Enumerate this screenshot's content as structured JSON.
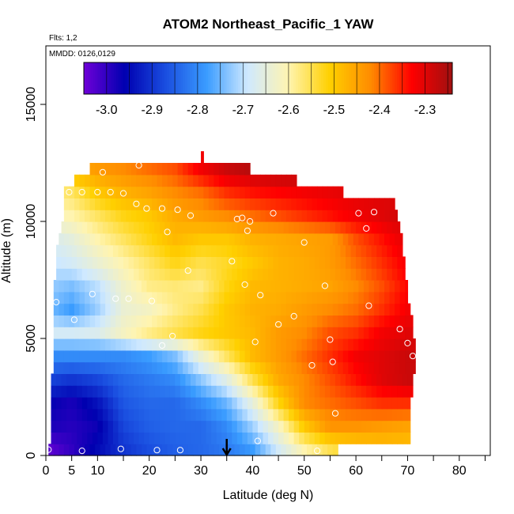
{
  "chart_data": {
    "type": "heatmap",
    "title": "ATOM2 Northeast_Pacific_1 YAW",
    "flights_note": "Flts: 1,2",
    "dates_note": "MMDD: 0126,0129",
    "xlabel": "Latitude (deg N)",
    "ylabel": "Altitude (m)",
    "xlim": [
      0,
      86
    ],
    "ylim": [
      0,
      17500
    ],
    "x_ticks": [
      0,
      5,
      10,
      20,
      30,
      40,
      50,
      60,
      70,
      80
    ],
    "x_tick_labels": [
      "0",
      "5",
      "10",
      "20",
      "30",
      "40",
      "50",
      "60",
      "70",
      "80"
    ],
    "y_ticks": [
      0,
      5000,
      10000,
      15000
    ],
    "y_tick_labels": [
      "0",
      "5000",
      "10000",
      "15000"
    ],
    "colorbar": {
      "min": -3.05,
      "max": -2.24,
      "ticks": [
        -3.0,
        -2.9,
        -2.8,
        -2.7,
        -2.6,
        -2.5,
        -2.4,
        -2.3
      ],
      "tick_labels": [
        "-3.0",
        "-2.9",
        "-2.8",
        "-2.7",
        "-2.6",
        "-2.5",
        "-2.4",
        "-2.3"
      ],
      "colors": [
        "#6f00d8",
        "#0000b0",
        "#1a4ee0",
        "#3a9cff",
        "#cfe9ff",
        "#fff4b0",
        "#ffd000",
        "#ff8c00",
        "#ff0000",
        "#a01010"
      ]
    },
    "coverage": [
      {
        "alt": 250,
        "lat_min": 0.5,
        "lat_max": 56.5
      },
      {
        "alt": 750,
        "lat_min": 1.0,
        "lat_max": 70.5
      },
      {
        "alt": 1250,
        "lat_min": 1.0,
        "lat_max": 70.5
      },
      {
        "alt": 1750,
        "lat_min": 1.0,
        "lat_max": 70.5
      },
      {
        "alt": 2250,
        "lat_min": 1.0,
        "lat_max": 70.5
      },
      {
        "alt": 2750,
        "lat_min": 1.0,
        "lat_max": 71.0
      },
      {
        "alt": 3250,
        "lat_min": 1.0,
        "lat_max": 71.0
      },
      {
        "alt": 3750,
        "lat_min": 1.5,
        "lat_max": 71.5
      },
      {
        "alt": 4250,
        "lat_min": 1.5,
        "lat_max": 71.5
      },
      {
        "alt": 4750,
        "lat_min": 1.5,
        "lat_max": 71.5
      },
      {
        "alt": 5250,
        "lat_min": 1.5,
        "lat_max": 71.0
      },
      {
        "alt": 5750,
        "lat_min": 1.5,
        "lat_max": 71.0
      },
      {
        "alt": 6250,
        "lat_min": 1.5,
        "lat_max": 70.5
      },
      {
        "alt": 6750,
        "lat_min": 1.5,
        "lat_max": 70.0
      },
      {
        "alt": 7250,
        "lat_min": 1.5,
        "lat_max": 70.0
      },
      {
        "alt": 7750,
        "lat_min": 2.0,
        "lat_max": 69.5
      },
      {
        "alt": 8250,
        "lat_min": 2.0,
        "lat_max": 69.5
      },
      {
        "alt": 8750,
        "lat_min": 2.0,
        "lat_max": 69.0
      },
      {
        "alt": 9250,
        "lat_min": 2.5,
        "lat_max": 69.0
      },
      {
        "alt": 9750,
        "lat_min": 3.0,
        "lat_max": 68.5
      },
      {
        "alt": 10250,
        "lat_min": 3.5,
        "lat_max": 68.0
      },
      {
        "alt": 10750,
        "lat_min": 3.5,
        "lat_max": 67.5
      },
      {
        "alt": 11250,
        "lat_min": 3.5,
        "lat_max": 57.5
      },
      {
        "alt": 11750,
        "lat_min": 5.5,
        "lat_max": 48.5
      },
      {
        "alt": 12250,
        "lat_min": 8.5,
        "lat_max": 39.5
      },
      {
        "alt": 12750,
        "lat_min": 30.0,
        "lat_max": 30.5
      }
    ],
    "value_field": {
      "description_of_field": "",
      "grid_lat": [
        0,
        5,
        10,
        15,
        20,
        25,
        30,
        35,
        40,
        45,
        50,
        55,
        60,
        65,
        70
      ],
      "grid_alt": [
        250,
        1250,
        2250,
        3250,
        4250,
        5250,
        6250,
        7250,
        8250,
        9250,
        10250,
        11250,
        12250
      ],
      "values": [
        [
          -3.04,
          -3.0,
          -2.95,
          -2.9,
          -2.87,
          -2.85,
          -2.84,
          -2.82,
          -2.78,
          -2.68,
          -2.6,
          -2.55,
          -2.52,
          -2.5,
          -2.5
        ],
        [
          -2.98,
          -2.99,
          -2.97,
          -2.88,
          -2.85,
          -2.84,
          -2.84,
          -2.8,
          -2.72,
          -2.62,
          -2.5,
          -2.43,
          -2.43,
          -2.44,
          -2.45
        ],
        [
          -2.96,
          -2.98,
          -2.94,
          -2.86,
          -2.84,
          -2.84,
          -2.8,
          -2.75,
          -2.65,
          -2.52,
          -2.42,
          -2.4,
          -2.38,
          -2.36,
          -2.36
        ],
        [
          -2.88,
          -2.9,
          -2.88,
          -2.84,
          -2.82,
          -2.8,
          -2.73,
          -2.66,
          -2.55,
          -2.46,
          -2.42,
          -2.38,
          -2.34,
          -2.3,
          -2.28
        ],
        [
          -2.8,
          -2.8,
          -2.8,
          -2.8,
          -2.78,
          -2.74,
          -2.64,
          -2.56,
          -2.48,
          -2.44,
          -2.4,
          -2.36,
          -2.32,
          -2.3,
          -2.28
        ],
        [
          -2.68,
          -2.68,
          -2.67,
          -2.62,
          -2.58,
          -2.55,
          -2.52,
          -2.5,
          -2.48,
          -2.44,
          -2.42,
          -2.38,
          -2.36,
          -2.32,
          -2.3
        ],
        [
          -2.74,
          -2.78,
          -2.72,
          -2.64,
          -2.62,
          -2.58,
          -2.55,
          -2.5,
          -2.47,
          -2.46,
          -2.44,
          -2.42,
          -2.4,
          -2.36,
          -2.32
        ],
        [
          -2.72,
          -2.74,
          -2.7,
          -2.63,
          -2.58,
          -2.57,
          -2.58,
          -2.52,
          -2.48,
          -2.47,
          -2.46,
          -2.45,
          -2.42,
          -2.38,
          -2.33
        ],
        [
          -2.7,
          -2.68,
          -2.64,
          -2.6,
          -2.56,
          -2.52,
          -2.55,
          -2.53,
          -2.5,
          -2.47,
          -2.46,
          -2.44,
          -2.4,
          -2.36,
          -2.32
        ],
        [
          -2.68,
          -2.65,
          -2.6,
          -2.56,
          -2.52,
          -2.48,
          -2.5,
          -2.5,
          -2.47,
          -2.46,
          -2.45,
          -2.44,
          -2.38,
          -2.34,
          -2.3
        ],
        [
          -2.62,
          -2.6,
          -2.56,
          -2.52,
          -2.5,
          -2.46,
          -2.44,
          -2.42,
          -2.4,
          -2.38,
          -2.36,
          -2.34,
          -2.32,
          -2.3,
          -2.28
        ],
        [
          -2.58,
          -2.56,
          -2.5,
          -2.47,
          -2.45,
          -2.42,
          -2.4,
          -2.36,
          -2.34,
          -2.33,
          -2.32,
          -2.31,
          -2.3,
          -2.3,
          -2.3
        ],
        [
          -2.48,
          -2.46,
          -2.44,
          -2.42,
          -2.4,
          -2.38,
          -2.32,
          -2.28,
          -2.26,
          -2.25,
          -2.25,
          -2.25,
          -2.25,
          -2.25,
          -2.25
        ]
      ]
    },
    "sample_points": [
      {
        "lat": 0.5,
        "alt": 250
      },
      {
        "lat": 7,
        "alt": 200
      },
      {
        "lat": 14.5,
        "alt": 280
      },
      {
        "lat": 21.5,
        "alt": 230
      },
      {
        "lat": 26,
        "alt": 230
      },
      {
        "lat": 41,
        "alt": 620
      },
      {
        "lat": 52.5,
        "alt": 200
      },
      {
        "lat": 56,
        "alt": 1800
      },
      {
        "lat": 51.5,
        "alt": 3850
      },
      {
        "lat": 55.5,
        "alt": 4000
      },
      {
        "lat": 22.5,
        "alt": 4700
      },
      {
        "lat": 40.5,
        "alt": 4850
      },
      {
        "lat": 55,
        "alt": 4950
      },
      {
        "lat": 70,
        "alt": 4800
      },
      {
        "lat": 71,
        "alt": 4250
      },
      {
        "lat": 68.5,
        "alt": 5400
      },
      {
        "lat": 24.5,
        "alt": 5100
      },
      {
        "lat": 5.5,
        "alt": 5800
      },
      {
        "lat": 45,
        "alt": 5600
      },
      {
        "lat": 48,
        "alt": 5950
      },
      {
        "lat": 62.5,
        "alt": 6400
      },
      {
        "lat": 2,
        "alt": 6550
      },
      {
        "lat": 9,
        "alt": 6900
      },
      {
        "lat": 13.5,
        "alt": 6700
      },
      {
        "lat": 16,
        "alt": 6700
      },
      {
        "lat": 20.5,
        "alt": 6600
      },
      {
        "lat": 38.5,
        "alt": 7300
      },
      {
        "lat": 41.5,
        "alt": 6850
      },
      {
        "lat": 54,
        "alt": 7250
      },
      {
        "lat": 27.5,
        "alt": 7900
      },
      {
        "lat": 36,
        "alt": 8300
      },
      {
        "lat": 50,
        "alt": 9100
      },
      {
        "lat": 23.5,
        "alt": 9550
      },
      {
        "lat": 39,
        "alt": 9600
      },
      {
        "lat": 62,
        "alt": 9700
      },
      {
        "lat": 37,
        "alt": 10100
      },
      {
        "lat": 38,
        "alt": 10150
      },
      {
        "lat": 39.5,
        "alt": 10000
      },
      {
        "lat": 44,
        "alt": 10350
      },
      {
        "lat": 60.5,
        "alt": 10350
      },
      {
        "lat": 63.5,
        "alt": 10400
      },
      {
        "lat": 19.5,
        "alt": 10550
      },
      {
        "lat": 22.5,
        "alt": 10550
      },
      {
        "lat": 25.5,
        "alt": 10500
      },
      {
        "lat": 28,
        "alt": 10250
      },
      {
        "lat": 17.5,
        "alt": 10750
      },
      {
        "lat": 4.5,
        "alt": 11250
      },
      {
        "lat": 7,
        "alt": 11250
      },
      {
        "lat": 10,
        "alt": 11250
      },
      {
        "lat": 12.5,
        "alt": 11250
      },
      {
        "lat": 15,
        "alt": 11200
      },
      {
        "lat": 69,
        "alt": 10900
      },
      {
        "lat": 11,
        "alt": 12100
      },
      {
        "lat": 18,
        "alt": 12400
      }
    ],
    "arrow_marker": {
      "lat": 35,
      "label": ""
    }
  }
}
